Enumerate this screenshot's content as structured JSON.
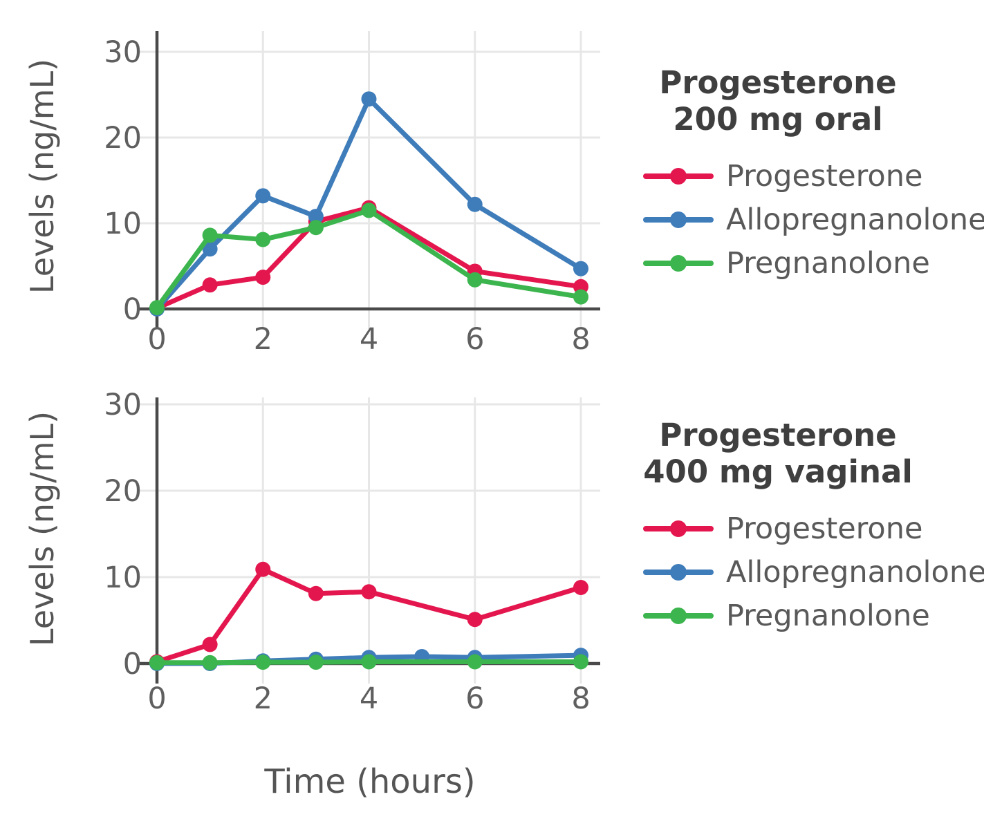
{
  "axes": {
    "xlabel": "Time (hours)",
    "ylabel": "Levels (ng/mL)"
  },
  "styles": {
    "axis_color": "#4a4a4a",
    "grid_color": "#e7e7e7",
    "tick_color": "#5f5f5f",
    "title_color": "#3f3f3f",
    "label_color": "#555555",
    "background": "#ffffff"
  },
  "chart_data": [
    {
      "type": "line",
      "title": "Progesterone 200 mg oral",
      "title_lines": [
        "Progesterone",
        "200 mg oral"
      ],
      "xlabel": "Time (hours)",
      "ylabel": "Levels (ng/mL)",
      "xlim": [
        0,
        8.4
      ],
      "ylim": [
        0,
        32.5
      ],
      "x_ticks": [
        0,
        2,
        4,
        6,
        8
      ],
      "y_ticks": [
        0,
        10,
        20,
        30
      ],
      "grid": true,
      "legend_position": "right",
      "series": [
        {
          "name": "Progesterone",
          "color": "#e4164e",
          "x": [
            0,
            1,
            2,
            3,
            4,
            6,
            8
          ],
          "values": [
            0.1,
            2.8,
            3.7,
            10.2,
            11.8,
            4.4,
            2.6
          ]
        },
        {
          "name": "Allopregnanolone",
          "color": "#3e7cba",
          "x": [
            0,
            1,
            2,
            3,
            4,
            6,
            8
          ],
          "values": [
            0.0,
            7.0,
            13.2,
            10.8,
            24.5,
            12.2,
            4.7
          ]
        },
        {
          "name": "Pregnanolone",
          "color": "#3cb54e",
          "x": [
            0,
            1,
            2,
            3,
            4,
            6,
            8
          ],
          "values": [
            0.15,
            8.6,
            8.1,
            9.5,
            11.5,
            3.4,
            1.4
          ]
        }
      ]
    },
    {
      "type": "line",
      "title": "Progesterone 400 mg vaginal",
      "title_lines": [
        "Progesterone",
        "400 mg vaginal"
      ],
      "xlabel": "Time (hours)",
      "ylabel": "Levels (ng/mL)",
      "xlim": [
        0,
        8.4
      ],
      "ylim": [
        0,
        32.5
      ],
      "x_ticks": [
        0,
        2,
        4,
        6,
        8
      ],
      "y_ticks": [
        0,
        10,
        20,
        30
      ],
      "grid": true,
      "legend_position": "right",
      "series": [
        {
          "name": "Progesterone",
          "color": "#e4164e",
          "x": [
            0,
            1,
            2,
            3,
            4,
            6,
            8
          ],
          "values": [
            0.2,
            2.2,
            10.9,
            8.1,
            8.3,
            5.1,
            8.8
          ]
        },
        {
          "name": "Allopregnanolone",
          "color": "#3e7cba",
          "x": [
            0,
            1,
            2,
            3,
            4,
            5,
            6,
            8
          ],
          "values": [
            0.0,
            0.0,
            0.3,
            0.5,
            0.7,
            0.8,
            0.7,
            0.95
          ]
        },
        {
          "name": "Pregnanolone",
          "color": "#3cb54e",
          "x": [
            0,
            1,
            2,
            3,
            4,
            6,
            8
          ],
          "values": [
            0.1,
            0.1,
            0.15,
            0.15,
            0.2,
            0.2,
            0.2
          ]
        }
      ]
    }
  ]
}
